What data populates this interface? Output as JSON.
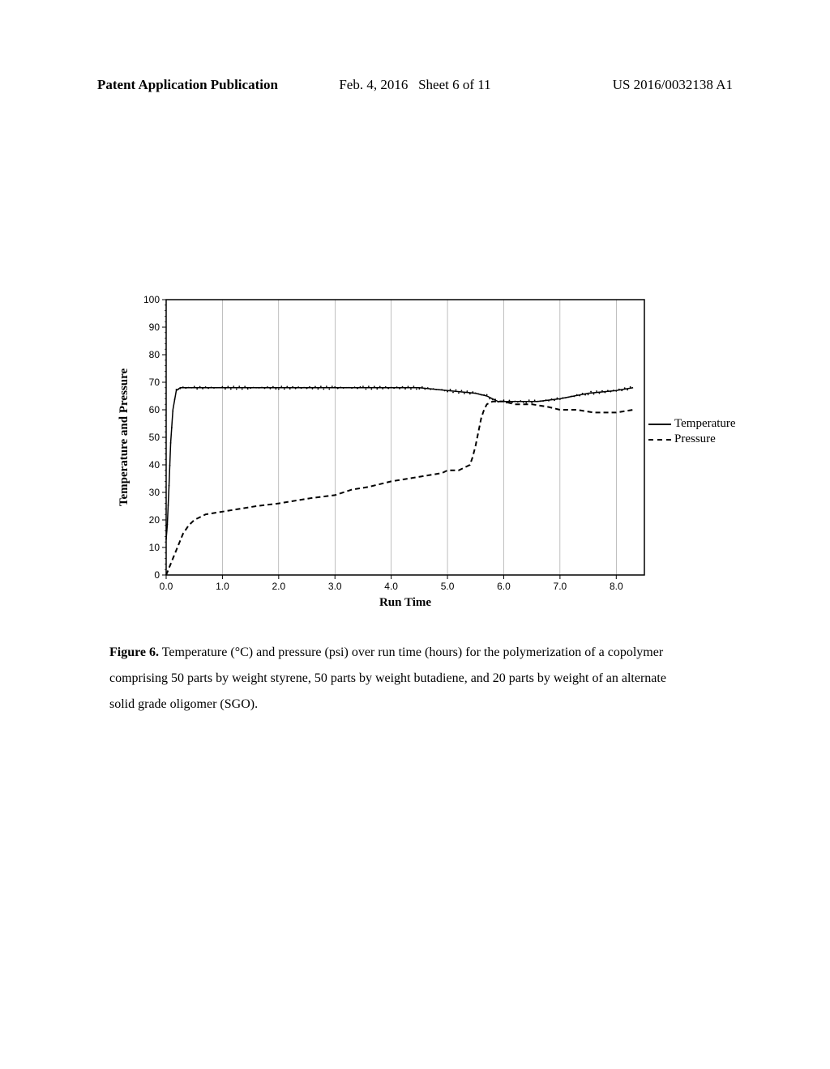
{
  "header": {
    "left": "Patent Application Publication",
    "center_date": "Feb. 4, 2016",
    "center_sheet": "Sheet 6 of 11",
    "right": "US 2016/0032138 A1"
  },
  "chart": {
    "type": "line",
    "xlabel": "Run Time",
    "ylabel": "Temperature and Pressure",
    "xlim": [
      0,
      8.5
    ],
    "ylim": [
      0,
      100
    ],
    "xticks": [
      0.0,
      1.0,
      2.0,
      3.0,
      4.0,
      5.0,
      6.0,
      7.0,
      8.0
    ],
    "xtick_labels": [
      "0.0",
      "1.0",
      "2.0",
      "3.0",
      "4.0",
      "5.0",
      "6.0",
      "7.0",
      "8.0"
    ],
    "yticks": [
      0,
      10,
      20,
      30,
      40,
      50,
      60,
      70,
      80,
      90,
      100
    ],
    "background_color": "#ffffff",
    "grid_color": "#808080",
    "axis_color": "#000000",
    "tick_fontsize": 12,
    "label_fontsize": 15,
    "series": {
      "temperature": {
        "label": "Temperature",
        "color": "#000000",
        "line_style": "solid",
        "line_width": 1.5,
        "data": [
          [
            0.0,
            13
          ],
          [
            0.02,
            18
          ],
          [
            0.05,
            32
          ],
          [
            0.08,
            48
          ],
          [
            0.12,
            60
          ],
          [
            0.18,
            67
          ],
          [
            0.25,
            68
          ],
          [
            0.5,
            68
          ],
          [
            1.0,
            68
          ],
          [
            1.5,
            68
          ],
          [
            2.0,
            68
          ],
          [
            2.5,
            68
          ],
          [
            3.0,
            68
          ],
          [
            3.5,
            68
          ],
          [
            4.0,
            68
          ],
          [
            4.5,
            68
          ],
          [
            5.0,
            67
          ],
          [
            5.5,
            66
          ],
          [
            5.7,
            65
          ],
          [
            5.8,
            64
          ],
          [
            5.9,
            63
          ],
          [
            6.0,
            63
          ],
          [
            6.2,
            63
          ],
          [
            6.4,
            63
          ],
          [
            6.6,
            63
          ],
          [
            7.0,
            64
          ],
          [
            7.5,
            66
          ],
          [
            8.0,
            67
          ],
          [
            8.3,
            68
          ]
        ]
      },
      "pressure": {
        "label": "Pressure",
        "color": "#000000",
        "line_style": "dashed",
        "line_width": 2,
        "dash_pattern": "6,4",
        "data": [
          [
            0.0,
            0
          ],
          [
            0.1,
            5
          ],
          [
            0.2,
            10
          ],
          [
            0.3,
            15
          ],
          [
            0.4,
            18
          ],
          [
            0.5,
            20
          ],
          [
            0.7,
            22
          ],
          [
            1.0,
            23
          ],
          [
            1.3,
            24
          ],
          [
            1.6,
            25
          ],
          [
            2.0,
            26
          ],
          [
            2.3,
            27
          ],
          [
            2.6,
            28
          ],
          [
            3.0,
            29
          ],
          [
            3.3,
            31
          ],
          [
            3.6,
            32
          ],
          [
            3.8,
            33
          ],
          [
            4.0,
            34
          ],
          [
            4.3,
            35
          ],
          [
            4.6,
            36
          ],
          [
            4.9,
            37
          ],
          [
            5.0,
            38
          ],
          [
            5.2,
            38
          ],
          [
            5.4,
            40
          ],
          [
            5.45,
            43
          ],
          [
            5.5,
            47
          ],
          [
            5.55,
            52
          ],
          [
            5.6,
            57
          ],
          [
            5.65,
            60
          ],
          [
            5.7,
            62
          ],
          [
            5.8,
            63
          ],
          [
            6.0,
            63
          ],
          [
            6.2,
            62
          ],
          [
            6.5,
            62
          ],
          [
            6.8,
            61
          ],
          [
            7.0,
            60
          ],
          [
            7.3,
            60
          ],
          [
            7.6,
            59
          ],
          [
            8.0,
            59
          ],
          [
            8.3,
            60
          ]
        ]
      }
    }
  },
  "legend": {
    "items": [
      {
        "label": "Temperature",
        "style": "solid",
        "color": "#000000"
      },
      {
        "label": "Pressure",
        "style": "dashed",
        "color": "#000000"
      }
    ]
  },
  "caption": {
    "figure_label": "Figure 6.",
    "text": "Temperature (°C) and pressure (psi) over run time (hours) for the polymerization of a copolymer comprising 50 parts by weight styrene, 50 parts by weight butadiene, and 20 parts by weight of an alternate solid grade oligomer (SGO)."
  }
}
